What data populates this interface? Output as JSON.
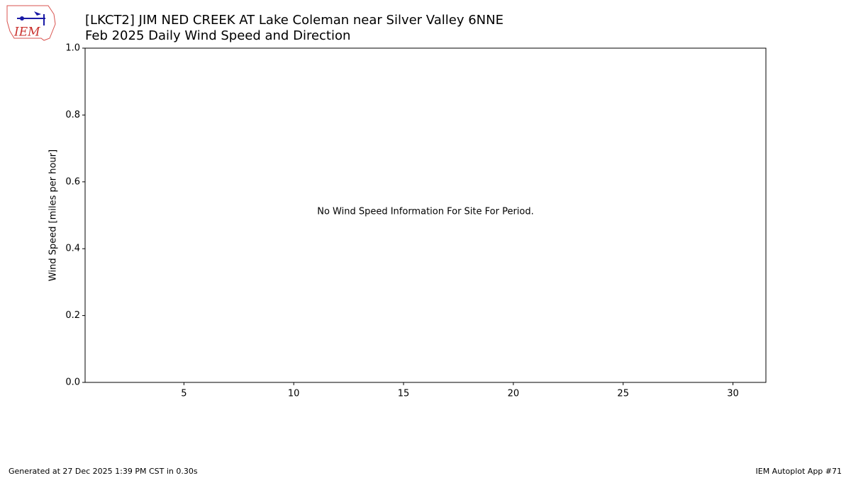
{
  "logo_text": "IEM",
  "chart_data": {
    "type": "bar",
    "title": "[LKCT2] JIM NED CREEK  AT Lake Coleman near Silver Valley 6NNE",
    "subtitle": "Feb 2025 Daily Wind Speed and Direction",
    "y_label": "Wind Speed [miles per hour]",
    "annotation": "No Wind Speed Information For Site For Period.",
    "xlim": [
      0.5,
      31.5
    ],
    "xticks": [
      5,
      10,
      15,
      20,
      25,
      30
    ],
    "ylim": [
      0,
      1
    ],
    "yticks": [
      {
        "value": 0,
        "label": "0.0"
      },
      0.2,
      0.4,
      0.6,
      0.8,
      {
        "value": 1,
        "label": "1.0"
      }
    ],
    "grid": false
  },
  "footer": {
    "left": "Generated at 27 Dec 2025 1:39 PM CST in 0.30s",
    "right": "IEM Autoplot App #71"
  }
}
